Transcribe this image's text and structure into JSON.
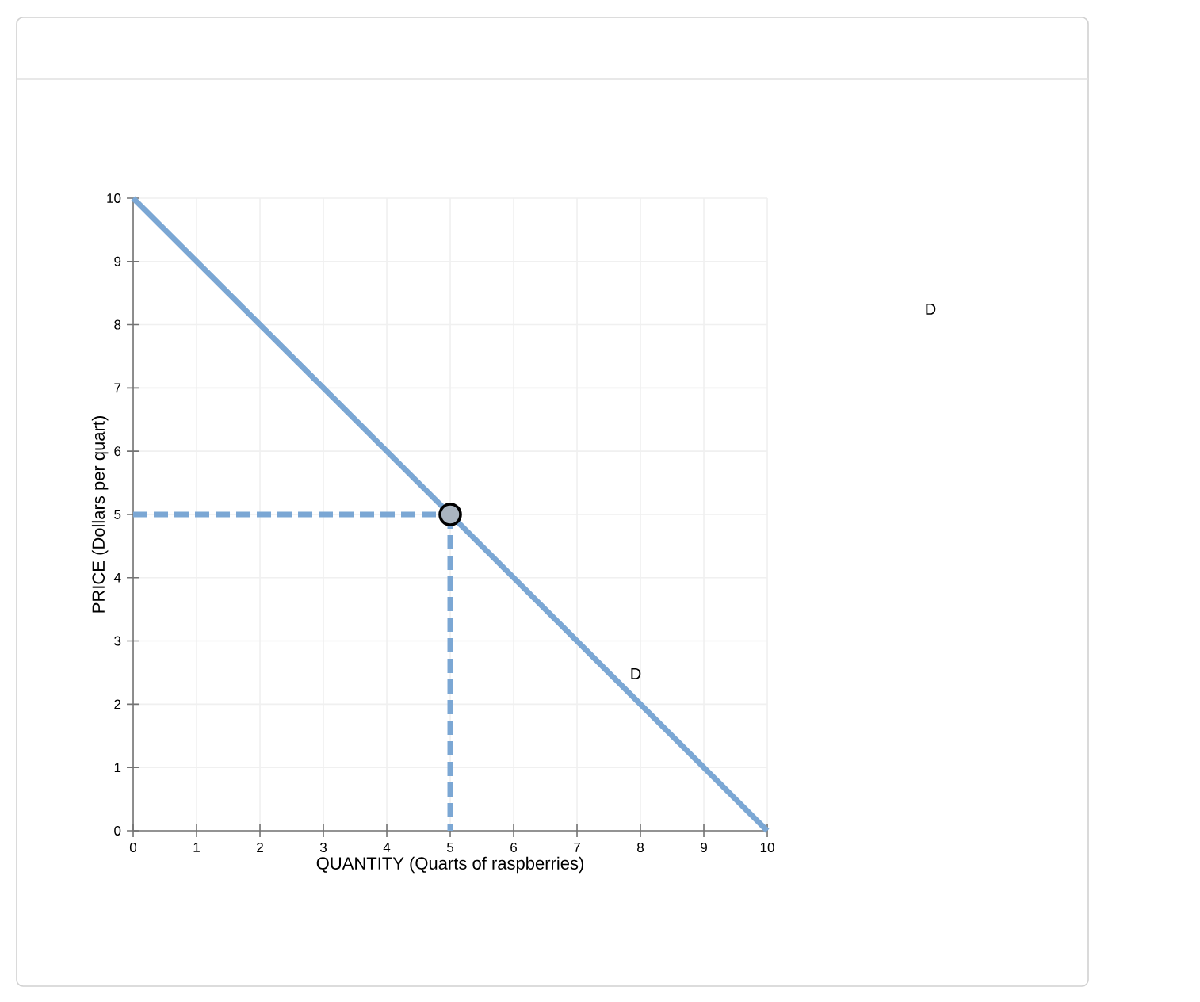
{
  "chart_data": {
    "type": "line",
    "xlabel": "QUANTITY (Quarts of raspberries)",
    "ylabel": "PRICE (Dollars per quart)",
    "xlim": [
      0,
      10
    ],
    "ylim": [
      0,
      10
    ],
    "xticks": [
      0,
      1,
      2,
      3,
      4,
      5,
      6,
      7,
      8,
      9,
      10
    ],
    "yticks": [
      0,
      1,
      2,
      3,
      4,
      5,
      6,
      7,
      8,
      9,
      10
    ],
    "grid": true,
    "series": [
      {
        "color": "#7ba7d4",
        "x": [
          0,
          10
        ],
        "values": [
          10,
          0
        ],
        "line_style": "solid"
      },
      {
        "color": "#7ba7d4",
        "x": [
          0,
          5
        ],
        "values": [
          5,
          5
        ],
        "line_style": "dashed"
      },
      {
        "color": "#7ba7d4",
        "x": [
          5,
          5
        ],
        "values": [
          5,
          0
        ],
        "line_style": "dashed"
      },
      {
        "type": "scatter",
        "color": "#a9b4c0",
        "x": [
          5
        ],
        "values": [
          5
        ],
        "marker": "circle"
      }
    ],
    "annotations": [
      "D",
      "D"
    ]
  }
}
